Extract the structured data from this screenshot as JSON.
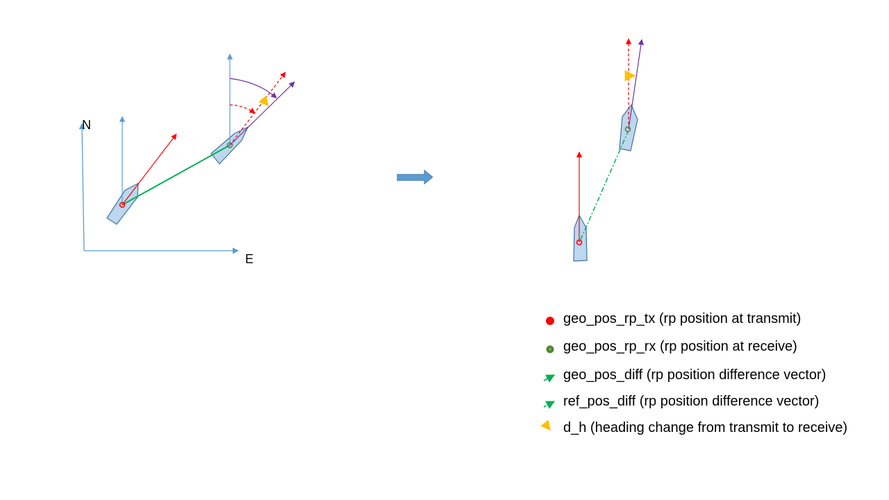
{
  "axes": {
    "north_label": "N",
    "east_label": "E"
  },
  "colors": {
    "axis": "#5b9bd5",
    "tx": "#ff0000",
    "rx": "#548235",
    "geo_diff": "#00b050",
    "heading": "#7030a0",
    "d_h": "#ffc000",
    "boat_fill": "#bdd7ee",
    "boat_stroke": "#41719c",
    "block_arrow": "#5b9bd5"
  },
  "legend": [
    {
      "key": "tx",
      "icon": "red-dot-icon",
      "text": "geo_pos_rp_tx (rp position at transmit)"
    },
    {
      "key": "rx",
      "icon": "green-dot-icon",
      "text": "geo_pos_rp_rx (rp position at receive)"
    },
    {
      "key": "geo_diff",
      "icon": "solid-green-arrow-icon",
      "text": "geo_pos_diff (rp position difference vector)"
    },
    {
      "key": "ref_diff",
      "icon": "dashdot-green-arrow-icon",
      "text": "ref_pos_diff (rp position difference vector)"
    },
    {
      "key": "d_h",
      "icon": "yellow-curved-arrow-icon",
      "text": "d_h (heading change from transmit to receive)"
    }
  ]
}
